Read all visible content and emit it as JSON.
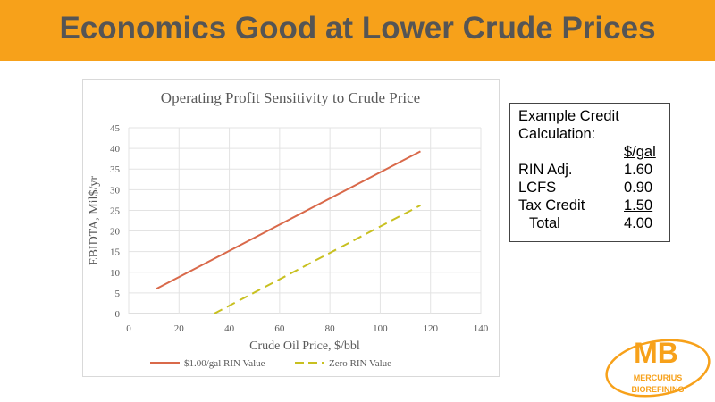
{
  "slide": {
    "title": "Economics Good at Lower Crude Prices"
  },
  "credit_box": {
    "heading_line1": "Example Credit",
    "heading_line2": "Calculation:",
    "unit_header": "$/gal",
    "rows": [
      {
        "label": "RIN Adj.",
        "value": "1.60"
      },
      {
        "label": "LCFS",
        "value": "0.90"
      },
      {
        "label": "Tax Credit",
        "value": "1.50"
      },
      {
        "label": "Total",
        "value": "4.00"
      }
    ]
  },
  "logo": {
    "letters": "MB",
    "name_line1": "MERCURIUS",
    "name_line2": "BIOREFINING",
    "color": "#f7a11a"
  },
  "chart_data": {
    "type": "line",
    "title": "Operating Profit Sensitivity to Crude Price",
    "xlabel": "Crude Oil Price, $/bbl",
    "ylabel": "EBIDTA, Mil$/yr",
    "xlim": [
      0,
      140
    ],
    "ylim": [
      0,
      45
    ],
    "xticks": [
      0,
      20,
      40,
      60,
      80,
      100,
      120,
      140
    ],
    "yticks": [
      0,
      5,
      10,
      15,
      20,
      25,
      30,
      35,
      40,
      45
    ],
    "grid": true,
    "legend_position": "bottom",
    "series": [
      {
        "name": "$1.00/gal RIN Value",
        "color": "#d9694a",
        "dash": false,
        "x": [
          11,
          116
        ],
        "y": [
          6,
          39.3
        ]
      },
      {
        "name": "Zero RIN Value",
        "color": "#c8c020",
        "dash": true,
        "x": [
          34,
          116
        ],
        "y": [
          0,
          26.2
        ]
      }
    ]
  }
}
